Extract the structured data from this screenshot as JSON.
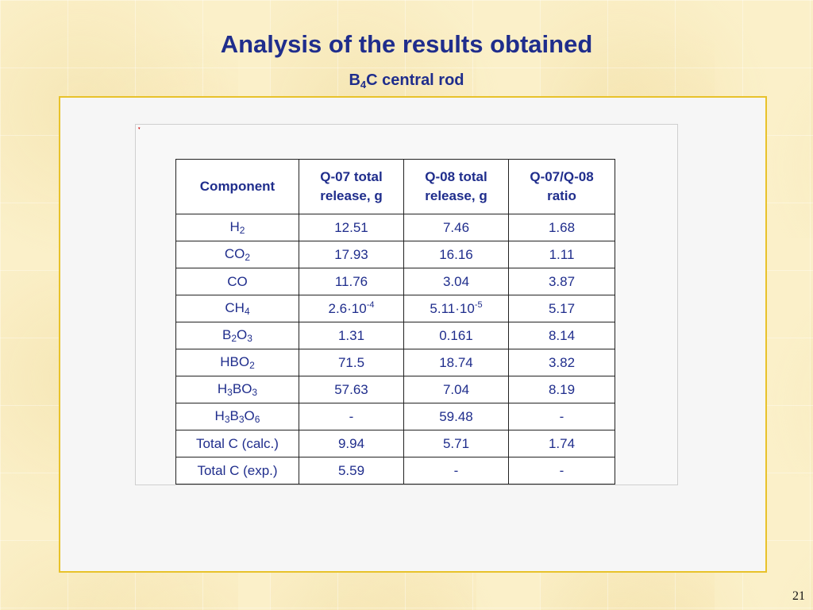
{
  "slide": {
    "title": "Analysis of the results obtained",
    "subtitle_prefix": "B",
    "subtitle_sub": "4",
    "subtitle_suffix": "C central rod",
    "page_number": "21"
  },
  "table": {
    "headers": [
      [
        "Component"
      ],
      [
        "Q-07 total",
        "release, g"
      ],
      [
        "Q-08 total",
        "release, g"
      ],
      [
        "Q-07/Q-08",
        "ratio"
      ]
    ],
    "rows": [
      {
        "component": [
          [
            "H",
            ""
          ],
          [
            "2",
            "sub"
          ]
        ],
        "q07": [
          [
            "12.51",
            ""
          ]
        ],
        "q08": [
          [
            "7.46",
            ""
          ]
        ],
        "ratio": "1.68"
      },
      {
        "component": [
          [
            "CO",
            ""
          ],
          [
            "2",
            "sub"
          ]
        ],
        "q07": [
          [
            "17.93",
            ""
          ]
        ],
        "q08": [
          [
            "16.16",
            ""
          ]
        ],
        "ratio": "1.11"
      },
      {
        "component": [
          [
            "CO",
            ""
          ]
        ],
        "q07": [
          [
            "11.76",
            ""
          ]
        ],
        "q08": [
          [
            "3.04",
            ""
          ]
        ],
        "ratio": "3.87"
      },
      {
        "component": [
          [
            "CH",
            ""
          ],
          [
            "4",
            "sub"
          ]
        ],
        "q07": [
          [
            "2.6·10",
            ""
          ],
          [
            "-4",
            "sup"
          ]
        ],
        "q08": [
          [
            "5.11·10",
            ""
          ],
          [
            "-5",
            "sup"
          ]
        ],
        "ratio": "5.17"
      },
      {
        "component": [
          [
            "B",
            ""
          ],
          [
            "2",
            "sub"
          ],
          [
            "O",
            ""
          ],
          [
            "3",
            "sub"
          ]
        ],
        "q07": [
          [
            "1.31",
            ""
          ]
        ],
        "q08": [
          [
            "0.161",
            ""
          ]
        ],
        "ratio": "8.14"
      },
      {
        "component": [
          [
            "HBO",
            ""
          ],
          [
            "2",
            "sub"
          ]
        ],
        "q07": [
          [
            "71.5",
            ""
          ]
        ],
        "q08": [
          [
            "18.74",
            ""
          ]
        ],
        "ratio": "3.82"
      },
      {
        "component": [
          [
            "H",
            ""
          ],
          [
            "3",
            "sub"
          ],
          [
            "BO",
            ""
          ],
          [
            "3",
            "sub"
          ]
        ],
        "q07": [
          [
            "57.63",
            ""
          ]
        ],
        "q08": [
          [
            "7.04",
            ""
          ]
        ],
        "ratio": "8.19"
      },
      {
        "component": [
          [
            "H",
            ""
          ],
          [
            "3",
            "sub"
          ],
          [
            "B",
            ""
          ],
          [
            "3",
            "sub"
          ],
          [
            "O",
            ""
          ],
          [
            "6",
            "sub"
          ]
        ],
        "q07": [
          [
            "-",
            ""
          ]
        ],
        "q08": [
          [
            "59.48",
            ""
          ]
        ],
        "ratio": "-"
      },
      {
        "component": [
          [
            "Total C (calc.)",
            ""
          ]
        ],
        "q07": [
          [
            "9.94",
            ""
          ]
        ],
        "q08": [
          [
            "5.71",
            ""
          ]
        ],
        "ratio": "1.74"
      },
      {
        "component": [
          [
            "Total C (exp.)",
            ""
          ]
        ],
        "q07": [
          [
            "5.59",
            ""
          ]
        ],
        "q08": [
          [
            "-",
            ""
          ]
        ],
        "ratio": "-"
      }
    ]
  }
}
